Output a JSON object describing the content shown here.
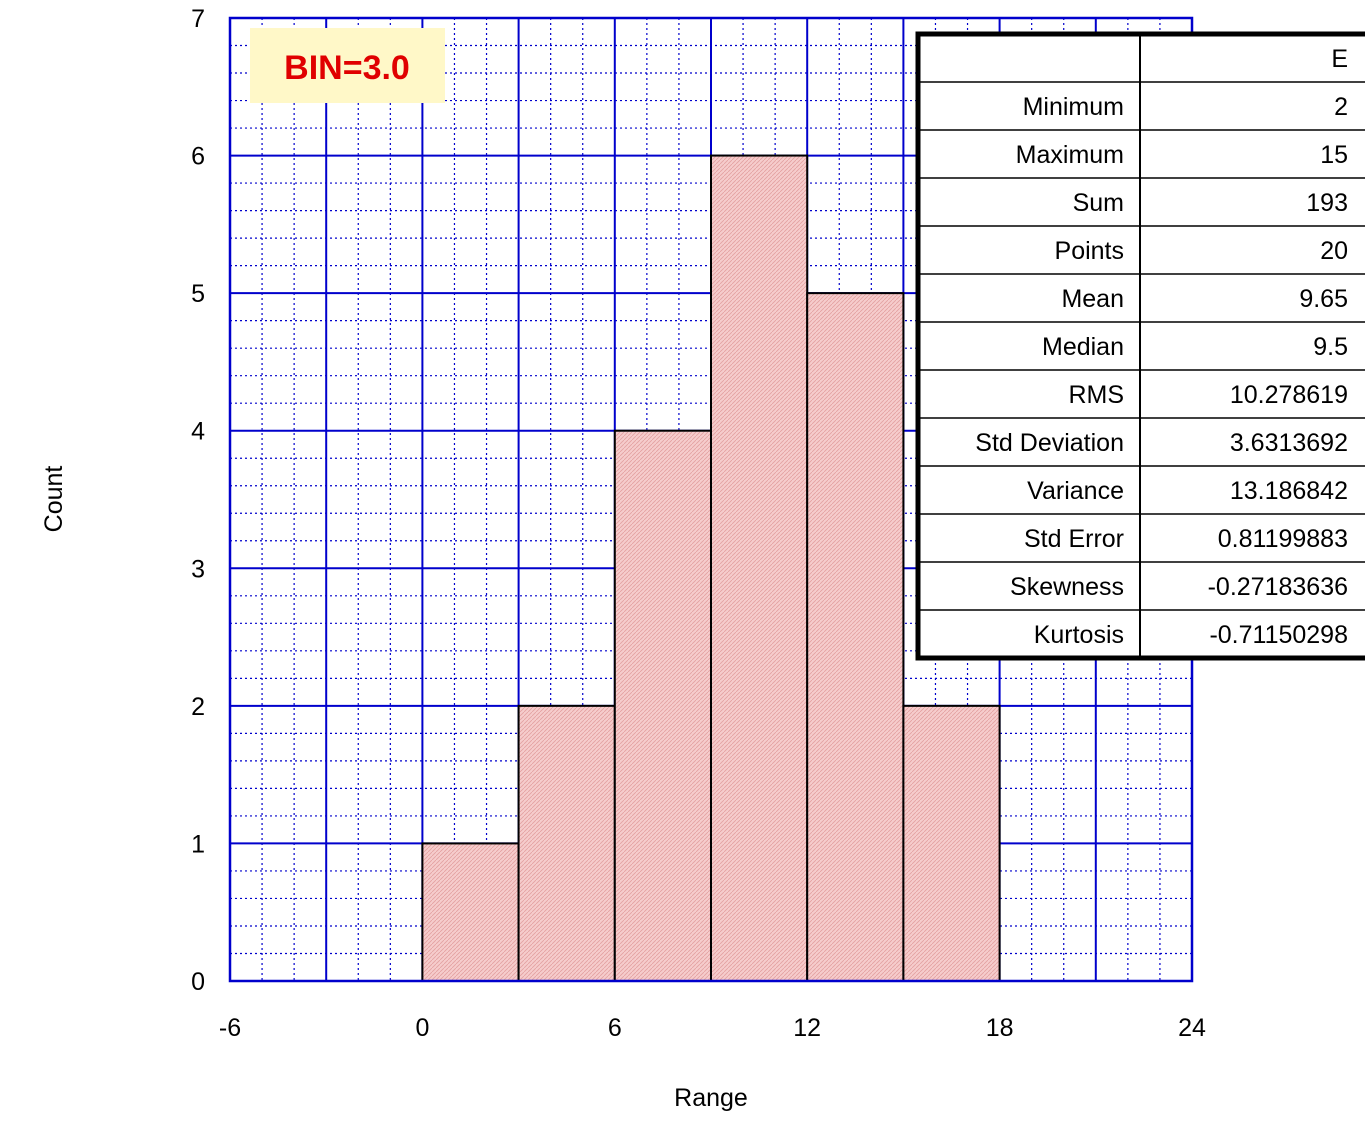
{
  "chart_data": {
    "type": "bar",
    "subtype": "histogram",
    "annotation": "BIN=3.0",
    "bin_width": 3.0,
    "bins": [
      {
        "start": 0,
        "end": 3,
        "count": 1
      },
      {
        "start": 3,
        "end": 6,
        "count": 2
      },
      {
        "start": 6,
        "end": 9,
        "count": 4
      },
      {
        "start": 9,
        "end": 12,
        "count": 6
      },
      {
        "start": 12,
        "end": 15,
        "count": 5
      },
      {
        "start": 15,
        "end": 18,
        "count": 2
      }
    ],
    "xlabel": "Range",
    "ylabel": "Count",
    "xlim": [
      -6,
      24
    ],
    "ylim": [
      0,
      7
    ],
    "xticks": [
      -6,
      0,
      6,
      12,
      18,
      24
    ],
    "yticks": [
      0,
      1,
      2,
      3,
      4,
      5,
      6,
      7
    ],
    "grid": true,
    "colors": {
      "grid": "#0000cc",
      "bar_fill": "#f5c6c6",
      "bar_stroke": "#000000",
      "annotation_bg": "#fff8c8",
      "annotation_text": "#e00000"
    }
  },
  "stats_table": {
    "header": [
      "",
      "E"
    ],
    "rows": [
      {
        "label": "Minimum",
        "value": "2"
      },
      {
        "label": "Maximum",
        "value": "15"
      },
      {
        "label": "Sum",
        "value": "193"
      },
      {
        "label": "Points",
        "value": "20"
      },
      {
        "label": "Mean",
        "value": "9.65"
      },
      {
        "label": "Median",
        "value": "9.5"
      },
      {
        "label": "RMS",
        "value": "10.278619"
      },
      {
        "label": "Std Deviation",
        "value": "3.6313692"
      },
      {
        "label": "Variance",
        "value": "13.186842"
      },
      {
        "label": "Std Error",
        "value": "0.81199883"
      },
      {
        "label": "Skewness",
        "value": "-0.27183636"
      },
      {
        "label": "Kurtosis",
        "value": "-0.71150298"
      }
    ]
  }
}
